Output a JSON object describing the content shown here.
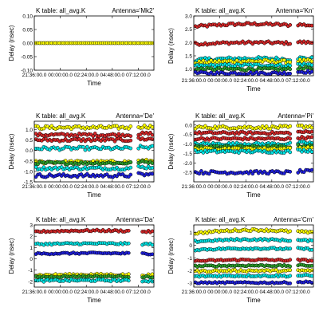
{
  "chart_data": [
    {
      "type": "scatter",
      "title": "K table: all_avg.K",
      "antenna": "Antenna='Mk2'",
      "xlabel": "Time",
      "ylabel": "Delay (nsec)",
      "xticks": [
        "21:36:00.0",
        "00:00:00.0",
        "02:24:00.0",
        "04:48:00.0",
        "07:12:00.0"
      ],
      "yticks": [
        "-0.10",
        "-0.05",
        "0.00",
        "0.05",
        "0.10"
      ],
      "ylim": [
        -0.1,
        0.1
      ],
      "series": [
        {
          "color": "#ffff00",
          "base": 0.0,
          "noise": 0.0,
          "slope": 0.0,
          "gap": false
        }
      ]
    },
    {
      "type": "scatter",
      "title": "K table: all_avg.K",
      "antenna": "Antenna='Kn'",
      "xlabel": "Time",
      "ylabel": "Delay (nsec)",
      "xticks": [
        "21:36:00.0",
        "00:00:00.0",
        "02:24:00.0",
        "04:48:00.0",
        "07:12:00.0"
      ],
      "yticks": [
        "1.0",
        "1.5",
        "2.0",
        "2.5",
        "3.0"
      ],
      "ylim": [
        0.75,
        3.0
      ],
      "series": [
        {
          "color": "#d62728",
          "base": 2.6,
          "noise": 0.05,
          "slope": 0.1,
          "gap": true
        },
        {
          "color": "#d62728",
          "base": 1.95,
          "noise": 0.05,
          "slope": 0.05,
          "gap": true
        },
        {
          "color": "#00e5e5",
          "base": 1.35,
          "noise": 0.06,
          "slope": 0.05,
          "gap": true
        },
        {
          "color": "#ffff00",
          "base": 1.25,
          "noise": 0.06,
          "slope": 0.05,
          "gap": true
        },
        {
          "color": "#00e5e5",
          "base": 1.12,
          "noise": 0.05,
          "slope": 0.03,
          "gap": true
        },
        {
          "color": "#2ca02c",
          "base": 1.0,
          "noise": 0.05,
          "slope": 0.0,
          "gap": true
        },
        {
          "color": "#1f1fdc",
          "base": 0.85,
          "noise": 0.05,
          "slope": 0.0,
          "gap": true
        }
      ]
    },
    {
      "type": "scatter",
      "title": "K table: all_avg.K",
      "antenna": "Antenna='De'",
      "xlabel": "Time",
      "ylabel": "Delay (nsec)",
      "xticks": [
        "21:36:00.0",
        "00:00:00.0",
        "02:24:00.0",
        "04:48:00.0",
        "07:12:00.0"
      ],
      "yticks": [
        "-1.5",
        "-1.0",
        "-0.5",
        "0.0",
        "0.5",
        "1.0"
      ],
      "ylim": [
        -1.5,
        1.4
      ],
      "series": [
        {
          "color": "#ffff00",
          "base": 1.1,
          "noise": 0.08,
          "slope": 0.0,
          "gap": true
        },
        {
          "color": "#d62728",
          "base": 0.75,
          "noise": 0.07,
          "slope": 0.0,
          "gap": true
        },
        {
          "color": "#d62728",
          "base": 0.5,
          "noise": 0.07,
          "slope": 0.0,
          "gap": true
        },
        {
          "color": "#00e5e5",
          "base": 0.1,
          "noise": 0.08,
          "slope": 0.0,
          "gap": true
        },
        {
          "color": "#ffff00",
          "base": -0.55,
          "noise": 0.07,
          "slope": 0.0,
          "gap": true
        },
        {
          "color": "#2ca02c",
          "base": -0.6,
          "noise": 0.06,
          "slope": 0.0,
          "gap": true
        },
        {
          "color": "#00e5e5",
          "base": -0.85,
          "noise": 0.07,
          "slope": 0.0,
          "gap": true
        },
        {
          "color": "#1f1fdc",
          "base": -1.2,
          "noise": 0.08,
          "slope": 0.0,
          "gap": true
        }
      ]
    },
    {
      "type": "scatter",
      "title": "K table: all_avg.K",
      "antenna": "Antenna='Pi'",
      "xlabel": "Time",
      "ylabel": "Delay (nsec)",
      "xticks": [
        "21:36:00.0",
        "00:00:00.0",
        "02:24:00.0",
        "04:48:00.0",
        "07:12:00.0"
      ],
      "yticks": [
        "-2.5",
        "-2.0",
        "-1.5",
        "-1.0",
        "-0.5",
        "0.0"
      ],
      "ylim": [
        -3.0,
        0.2
      ],
      "series": [
        {
          "color": "#ffff00",
          "base": -0.12,
          "noise": 0.08,
          "slope": 0.0,
          "gap": true
        },
        {
          "color": "#d62728",
          "base": -0.42,
          "noise": 0.06,
          "slope": 0.0,
          "gap": true
        },
        {
          "color": "#d62728",
          "base": -0.72,
          "noise": 0.06,
          "slope": 0.0,
          "gap": true
        },
        {
          "color": "#00e5e5",
          "base": -1.0,
          "noise": 0.07,
          "slope": 0.0,
          "gap": true
        },
        {
          "color": "#2ca02c",
          "base": -1.15,
          "noise": 0.06,
          "slope": 0.0,
          "gap": true
        },
        {
          "color": "#ffff00",
          "base": -1.25,
          "noise": 0.06,
          "slope": 0.0,
          "gap": true
        },
        {
          "color": "#00e5e5",
          "base": -1.4,
          "noise": 0.07,
          "slope": 0.0,
          "gap": true
        },
        {
          "color": "#1f1fdc",
          "base": -2.5,
          "noise": 0.08,
          "slope": 0.0,
          "gap": true
        }
      ]
    },
    {
      "type": "scatter",
      "title": "K table: all_avg.K",
      "antenna": "Antenna='Da'",
      "xlabel": "Time",
      "ylabel": "Delay (nsec)",
      "xticks": [
        "21:36:00.0",
        "00:00:00.0",
        "02:24:00.0",
        "04:48:00.0",
        "07:12:00.0"
      ],
      "yticks": [
        "-2",
        "-1",
        "0",
        "1",
        "2",
        "3"
      ],
      "ylim": [
        -2.5,
        3.0
      ],
      "series": [
        {
          "color": "#d62728",
          "base": 2.4,
          "noise": 0.08,
          "slope": 0.1,
          "gap": "big"
        },
        {
          "color": "#00e5e5",
          "base": 1.3,
          "noise": 0.08,
          "slope": 0.05,
          "gap": "big"
        },
        {
          "color": "#1f1fdc",
          "base": 0.45,
          "noise": 0.07,
          "slope": 0.05,
          "gap": "big"
        },
        {
          "color": "#ffff00",
          "base": -1.45,
          "noise": 0.09,
          "slope": 0.05,
          "gap": "big"
        },
        {
          "color": "#2ca02c",
          "base": -1.6,
          "noise": 0.07,
          "slope": 0.05,
          "gap": "big"
        },
        {
          "color": "#00e5e5",
          "base": -1.95,
          "noise": 0.09,
          "slope": 0.05,
          "gap": "big"
        }
      ]
    },
    {
      "type": "scatter",
      "title": "K table: all_avg.K",
      "antenna": "Antenna='Cm'",
      "xlabel": "Time",
      "ylabel": "Delay (nsec)",
      "xticks": [
        "21:36:00.0",
        "00:00:00.0",
        "02:24:00.0",
        "04:48:00.0",
        "07:12:00.0"
      ],
      "yticks": [
        "-3",
        "-2",
        "-1",
        "0",
        "1"
      ],
      "ylim": [
        -3.3,
        1.6
      ],
      "series": [
        {
          "color": "#ffff00",
          "base": 0.95,
          "noise": 0.08,
          "slope": 0.25,
          "gap": true
        },
        {
          "color": "#00e5e5",
          "base": 0.3,
          "noise": 0.07,
          "slope": 0.15,
          "gap": true
        },
        {
          "color": "#00e5e5",
          "base": -0.35,
          "noise": 0.07,
          "slope": 0.1,
          "gap": true
        },
        {
          "color": "#d62728",
          "base": -1.25,
          "noise": 0.07,
          "slope": 0.1,
          "gap": true
        },
        {
          "color": "#2ca02c",
          "base": -1.65,
          "noise": 0.06,
          "slope": 0.05,
          "gap": true
        },
        {
          "color": "#ffff00",
          "base": -2.05,
          "noise": 0.07,
          "slope": 0.05,
          "gap": true
        },
        {
          "color": "#00e5e5",
          "base": -2.45,
          "noise": 0.07,
          "slope": 0.05,
          "gap": true
        },
        {
          "color": "#1f1fdc",
          "base": -2.95,
          "noise": 0.06,
          "slope": 0.0,
          "gap": true
        }
      ]
    }
  ]
}
